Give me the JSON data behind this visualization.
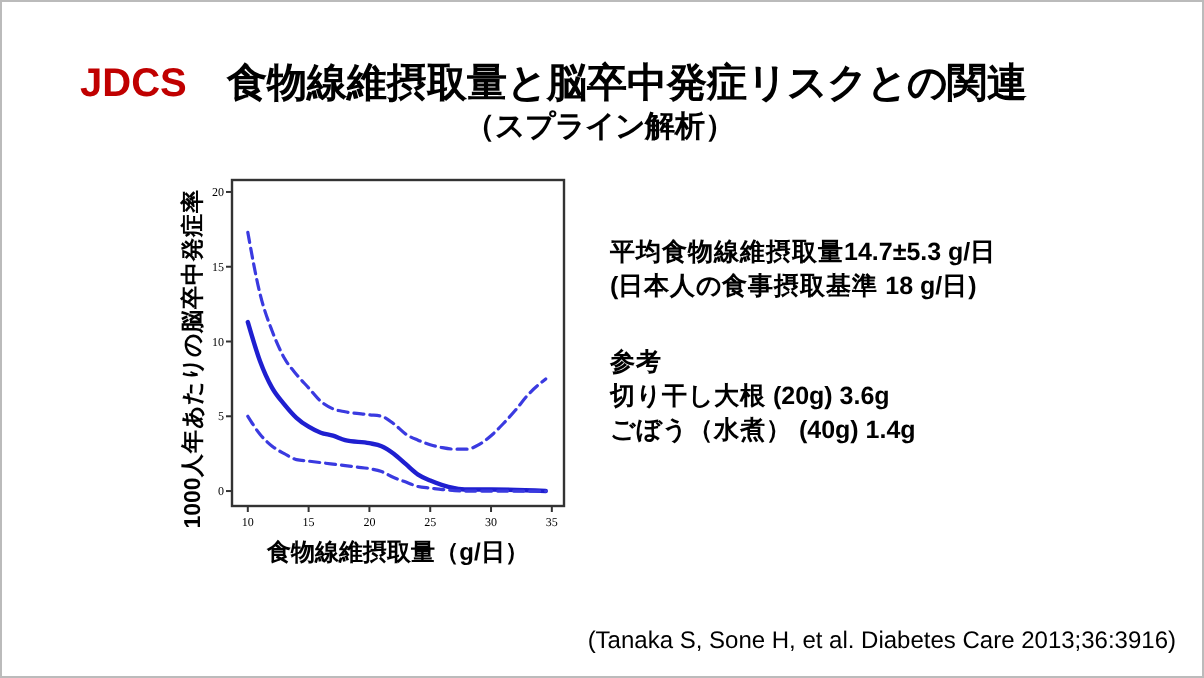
{
  "chart_data": {
    "type": "line",
    "title": "JDCS　食物線維摂取量と脳卒中発症リスクとの関連",
    "subtitle": "（スプライン解析）",
    "xlabel": "食物線維摂取量（g/日）",
    "ylabel": "1000人年あたりの脳卒中発症率",
    "xlim": [
      8.7,
      36
    ],
    "ylim": [
      -1,
      20.8
    ],
    "xticks": [
      10,
      15,
      20,
      25,
      30,
      35
    ],
    "yticks": [
      0,
      5,
      10,
      15,
      20
    ],
    "grid": false,
    "marker": "none",
    "series": [
      {
        "color": "#1f1fd0",
        "line_style": "solid",
        "x": [
          10,
          11,
          12,
          13,
          14,
          15,
          16,
          17,
          18,
          20,
          21,
          22,
          23,
          24,
          25,
          26,
          27,
          28,
          30,
          34.5
        ],
        "values": [
          11.3,
          8.7,
          6.9,
          5.8,
          4.9,
          4.3,
          3.9,
          3.7,
          3.4,
          3.2,
          3.0,
          2.5,
          1.8,
          1.1,
          0.7,
          0.4,
          0.2,
          0.1,
          0.1,
          0
        ]
      },
      {
        "color": "#3a3ae0",
        "line_style": "dashed",
        "x": [
          10,
          11,
          12,
          13,
          14,
          15,
          16,
          17,
          18,
          20,
          21,
          22,
          23,
          24,
          25,
          26,
          27,
          28,
          29,
          30,
          31,
          32,
          33,
          34.5
        ],
        "values": [
          17.3,
          13.2,
          10.7,
          8.9,
          7.8,
          6.9,
          6.0,
          5.5,
          5.3,
          5.1,
          5.0,
          4.5,
          3.8,
          3.4,
          3.1,
          2.9,
          2.8,
          2.8,
          3.1,
          3.7,
          4.5,
          5.4,
          6.4,
          7.5
        ]
      },
      {
        "color": "#3a3ae0",
        "line_style": "dashed",
        "x": [
          10,
          11,
          12,
          13,
          14,
          15,
          17,
          19,
          20,
          21,
          22,
          23,
          24,
          25,
          26,
          28,
          34.5
        ],
        "values": [
          5.0,
          3.8,
          3.0,
          2.5,
          2.1,
          2.0,
          1.8,
          1.6,
          1.5,
          1.3,
          0.9,
          0.6,
          0.3,
          0.2,
          0.1,
          0,
          0
        ]
      }
    ],
    "annotations": [
      "平均食物線維摂取量14.7±5.3 g/日",
      "(日本人の食事摂取基準 18 g/日)",
      "参考",
      "切り干し大根 (20g) 3.6g",
      "ごぼう（水煮） (40g) 1.4g",
      "(Tanaka S, Sone H, et al. Diabetes Care 2013;36:3916)"
    ]
  }
}
